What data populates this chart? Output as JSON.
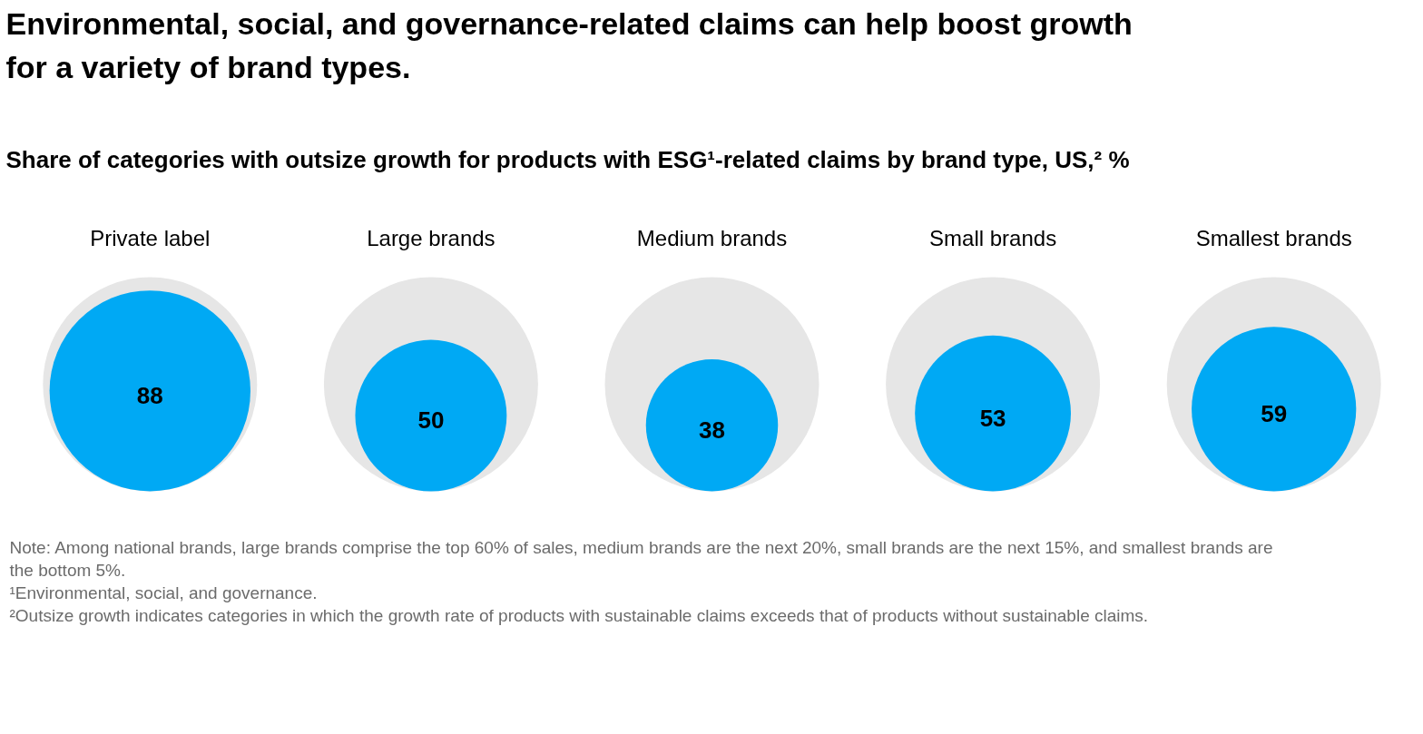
{
  "chart_data": {
    "type": "other",
    "title": "Environmental, social, and governance-related claims can help boost growth for a variety of brand types.",
    "subtitle": "Share of categories with outsize growth for products with ESG¹-related claims by brand type, US,² %",
    "categories": [
      "Private label",
      "Large brands",
      "Medium brands",
      "Small brands",
      "Smallest brands"
    ],
    "values": [
      88,
      50,
      38,
      53,
      59
    ],
    "color": "#00a9f4",
    "data_labels": true,
    "annotations": [
      "Note: Among national brands, large brands comprise the top 60% of sales, medium brands are the next 20%, small brands are the next 15%, and smallest brands are the bottom 5%.",
      "¹Environmental, social, and governance.",
      "²Outsize growth indicates categories in which the growth rate of products with sustainable claims exceeds that of products without sustainable claims."
    ]
  }
}
